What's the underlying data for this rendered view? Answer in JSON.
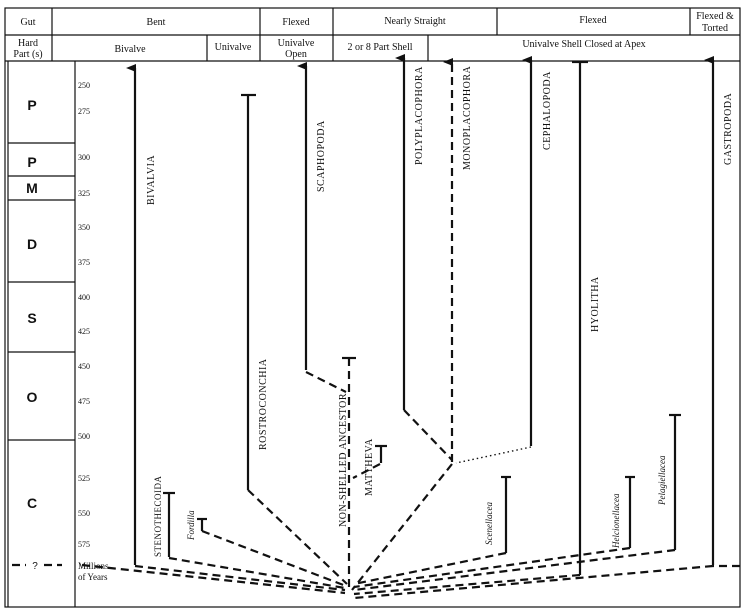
{
  "header": {
    "gut_label": "Gut",
    "hard_parts_label": [
      "Hard",
      "Part (s)"
    ],
    "gut_types": [
      "Bent",
      "Flexed",
      "Nearly Straight",
      "Flexed",
      "Flexed &",
      "Torted"
    ],
    "hard_parts": [
      "Bivalve",
      "Univalve",
      "Univalve",
      "Open",
      "2 or 8 Part Shell",
      "Univalve Shell Closed at Apex"
    ]
  },
  "periods": [
    "P",
    "P",
    "M",
    "D",
    "S",
    "O",
    "C",
    "?"
  ],
  "ages": [
    "250",
    "275",
    "300",
    "325",
    "350",
    "375",
    "400",
    "425",
    "450",
    "475",
    "500",
    "525",
    "550",
    "575"
  ],
  "axis_label": [
    "Millions",
    "of Years"
  ],
  "taxa": {
    "bivalvia": "BIVALVIA",
    "rostroconchia": "ROSTROCONCHIA",
    "scaphopoda": "SCAPHOPODA",
    "ancestor": "NON-SHELLED ANCESTOR",
    "mattheva": "MATTHEVA",
    "polyplacophora": "POLYPLACOPHORA",
    "monoplacophora": "MONOPLACOPHORA",
    "cephalopoda": "CEPHALOPODA",
    "hyolitha": "HYOLITHA",
    "gastropoda": "GASTROPODA",
    "stenothecoida": "STENOTHECOIDA",
    "fordilla": "Fordilla",
    "scenellacea": "Scenellacea",
    "helcionellacea": "Helcionellacea",
    "pelagiellacea": "Pelagiellacea"
  }
}
